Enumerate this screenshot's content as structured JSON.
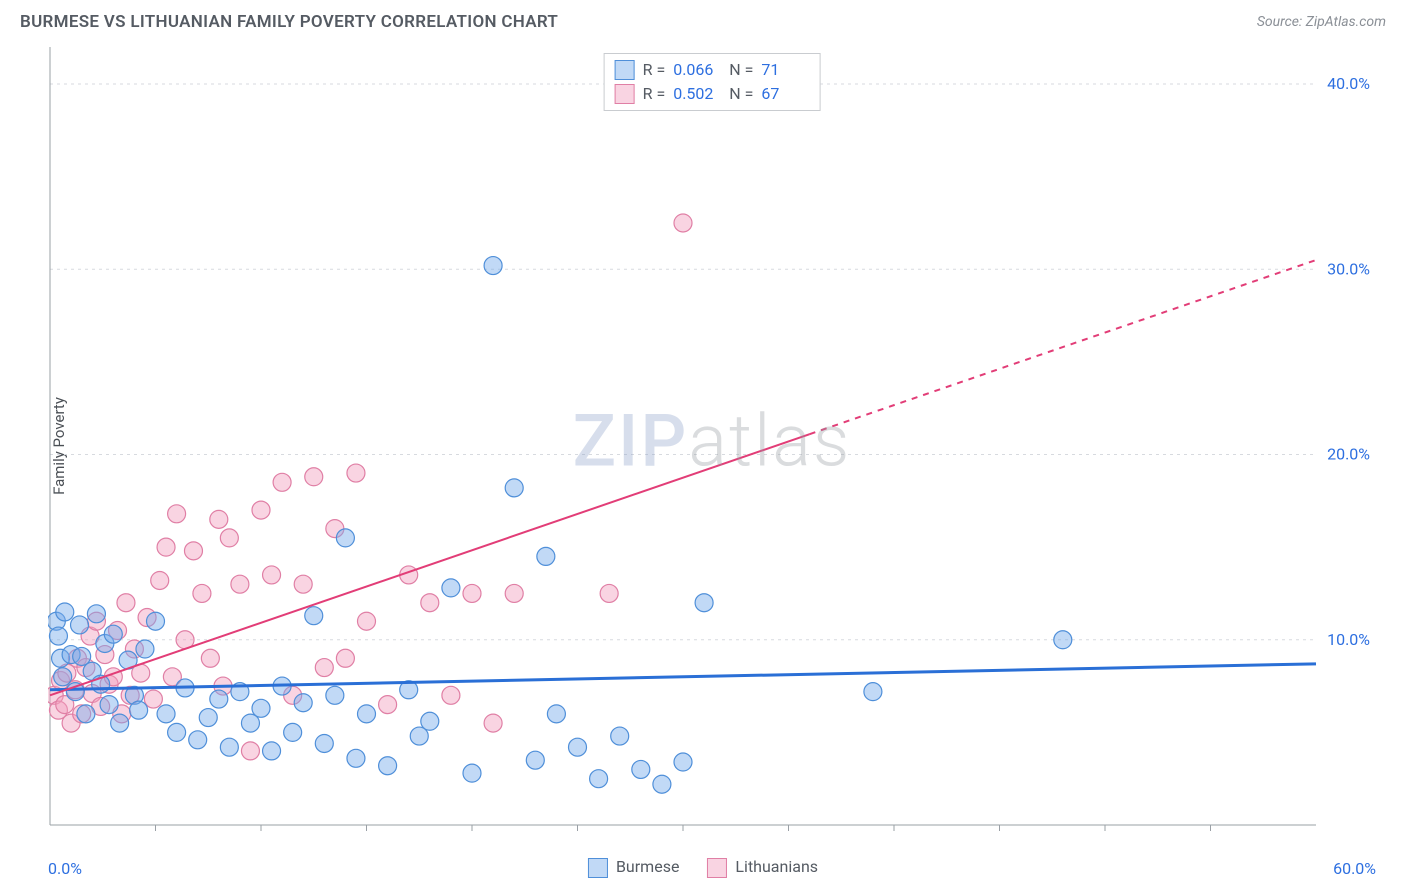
{
  "header": {
    "title": "BURMESE VS LITHUANIAN FAMILY POVERTY CORRELATION CHART",
    "source_prefix": "Source: ",
    "source_name": "ZipAtlas.com"
  },
  "axes": {
    "ylabel": "Family Poverty",
    "x_min": 0,
    "x_max": 60,
    "y_min": 0,
    "y_max": 42,
    "x_origin_text": "0.0%",
    "x_max_text": "60.0%",
    "y_ticks": [
      {
        "v": 10,
        "label": "10.0%"
      },
      {
        "v": 20,
        "label": "20.0%"
      },
      {
        "v": 30,
        "label": "30.0%"
      },
      {
        "v": 40,
        "label": "40.0%"
      }
    ],
    "x_minor_step": 5,
    "grid_color": "#d7dadf",
    "axis_color": "#9aa0a6",
    "tick_label_color": "#2d6fe0",
    "tick_label_fontsize": 16
  },
  "series": {
    "a": {
      "name": "Burmese",
      "color_fill": "rgba(118,170,234,0.45)",
      "color_stroke": "#4f8fd9",
      "marker_r": 9,
      "R": "0.066",
      "N": "71",
      "trend": {
        "y_at_xmin": 7.3,
        "y_at_xmax": 8.7,
        "color": "#2a6fd6",
        "width": 3
      },
      "points": [
        [
          0.3,
          11.0
        ],
        [
          0.4,
          10.2
        ],
        [
          0.5,
          9.0
        ],
        [
          0.6,
          8.0
        ],
        [
          0.7,
          11.5
        ],
        [
          1.0,
          9.2
        ],
        [
          1.2,
          7.2
        ],
        [
          1.4,
          10.8
        ],
        [
          1.5,
          9.1
        ],
        [
          1.7,
          6.0
        ],
        [
          2.0,
          8.3
        ],
        [
          2.2,
          11.4
        ],
        [
          2.4,
          7.6
        ],
        [
          2.6,
          9.8
        ],
        [
          2.8,
          6.5
        ],
        [
          3.0,
          10.3
        ],
        [
          3.3,
          5.5
        ],
        [
          3.7,
          8.9
        ],
        [
          4.0,
          7.0
        ],
        [
          4.2,
          6.2
        ],
        [
          4.5,
          9.5
        ],
        [
          5.0,
          11.0
        ],
        [
          5.5,
          6.0
        ],
        [
          6.0,
          5.0
        ],
        [
          6.4,
          7.4
        ],
        [
          7.0,
          4.6
        ],
        [
          7.5,
          5.8
        ],
        [
          8.0,
          6.8
        ],
        [
          8.5,
          4.2
        ],
        [
          9.0,
          7.2
        ],
        [
          9.5,
          5.5
        ],
        [
          10.0,
          6.3
        ],
        [
          10.5,
          4.0
        ],
        [
          11.0,
          7.5
        ],
        [
          11.5,
          5.0
        ],
        [
          12.0,
          6.6
        ],
        [
          12.5,
          11.3
        ],
        [
          13.0,
          4.4
        ],
        [
          13.5,
          7.0
        ],
        [
          14.0,
          15.5
        ],
        [
          14.5,
          3.6
        ],
        [
          15.0,
          6.0
        ],
        [
          16.0,
          3.2
        ],
        [
          17.0,
          7.3
        ],
        [
          17.5,
          4.8
        ],
        [
          18.0,
          5.6
        ],
        [
          19.0,
          12.8
        ],
        [
          20.0,
          2.8
        ],
        [
          21.0,
          30.2
        ],
        [
          22.0,
          18.2
        ],
        [
          23.0,
          3.5
        ],
        [
          23.5,
          14.5
        ],
        [
          24.0,
          6.0
        ],
        [
          25.0,
          4.2
        ],
        [
          26.0,
          2.5
        ],
        [
          27.0,
          4.8
        ],
        [
          28.0,
          3.0
        ],
        [
          29.0,
          2.2
        ],
        [
          30.0,
          3.4
        ],
        [
          31.0,
          12.0
        ],
        [
          39.0,
          7.2
        ],
        [
          48.0,
          10.0
        ]
      ]
    },
    "b": {
      "name": "Lithuanians",
      "color_fill": "rgba(242,160,190,0.45)",
      "color_stroke": "#e07fa5",
      "marker_r": 9,
      "R": "0.502",
      "N": "67",
      "trend": {
        "y_at_xmin": 7.0,
        "y_at_xmax": 30.5,
        "solid_until_x": 36,
        "color": "#e23d77",
        "width": 2
      },
      "points": [
        [
          0.2,
          7.0
        ],
        [
          0.4,
          6.2
        ],
        [
          0.5,
          7.8
        ],
        [
          0.7,
          6.5
        ],
        [
          0.8,
          8.2
        ],
        [
          1.0,
          5.5
        ],
        [
          1.2,
          7.3
        ],
        [
          1.3,
          9.0
        ],
        [
          1.5,
          6.0
        ],
        [
          1.7,
          8.5
        ],
        [
          1.9,
          10.2
        ],
        [
          2.0,
          7.1
        ],
        [
          2.2,
          11.0
        ],
        [
          2.4,
          6.4
        ],
        [
          2.6,
          9.2
        ],
        [
          2.8,
          7.6
        ],
        [
          3.0,
          8.0
        ],
        [
          3.2,
          10.5
        ],
        [
          3.4,
          6.0
        ],
        [
          3.6,
          12.0
        ],
        [
          3.8,
          7.0
        ],
        [
          4.0,
          9.5
        ],
        [
          4.3,
          8.2
        ],
        [
          4.6,
          11.2
        ],
        [
          4.9,
          6.8
        ],
        [
          5.2,
          13.2
        ],
        [
          5.5,
          15.0
        ],
        [
          5.8,
          8.0
        ],
        [
          6.0,
          16.8
        ],
        [
          6.4,
          10.0
        ],
        [
          6.8,
          14.8
        ],
        [
          7.2,
          12.5
        ],
        [
          7.6,
          9.0
        ],
        [
          8.0,
          16.5
        ],
        [
          8.2,
          7.5
        ],
        [
          8.5,
          15.5
        ],
        [
          9.0,
          13.0
        ],
        [
          9.5,
          4.0
        ],
        [
          10.0,
          17.0
        ],
        [
          10.5,
          13.5
        ],
        [
          11.0,
          18.5
        ],
        [
          11.5,
          7.0
        ],
        [
          12.0,
          13.0
        ],
        [
          12.5,
          18.8
        ],
        [
          13.0,
          8.5
        ],
        [
          13.5,
          16.0
        ],
        [
          14.0,
          9.0
        ],
        [
          14.5,
          19.0
        ],
        [
          15.0,
          11.0
        ],
        [
          16.0,
          6.5
        ],
        [
          17.0,
          13.5
        ],
        [
          18.0,
          12.0
        ],
        [
          19.0,
          7.0
        ],
        [
          20.0,
          12.5
        ],
        [
          21.0,
          5.5
        ],
        [
          22.0,
          12.5
        ],
        [
          26.5,
          12.5
        ],
        [
          30.0,
          32.5
        ]
      ]
    }
  },
  "legend_top": {
    "r_label": "R =",
    "n_label": "N ="
  },
  "legend_bottom": {
    "a_label": "Burmese",
    "b_label": "Lithuanians"
  },
  "watermark": {
    "part1": "ZIP",
    "part2": "atlas"
  }
}
